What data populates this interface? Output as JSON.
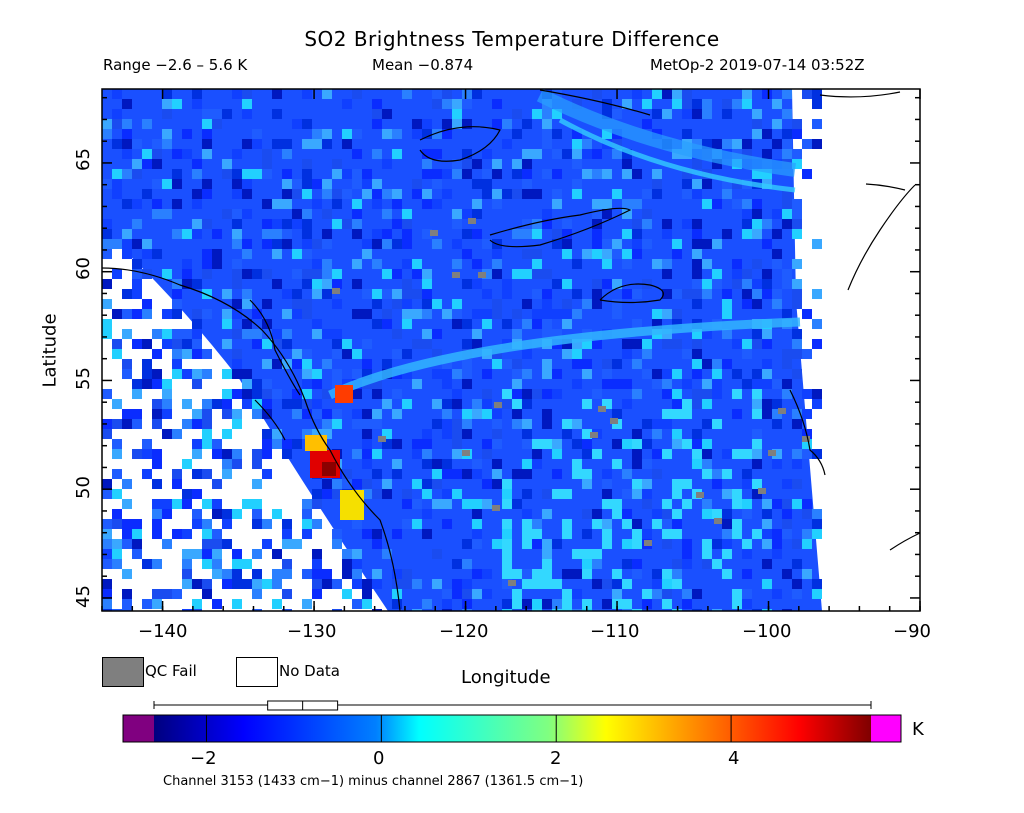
{
  "title": "SO2 Brightness Temperature Difference",
  "range_text": "Range −2.6 – 5.6 K",
  "mean_text": "Mean −0.874",
  "satellite_text": "MetOp-2 2019-07-14 03:52Z",
  "map": {
    "xlabel": "Longitude",
    "ylabel": "Latitude",
    "lon_range": [
      -144,
      -90
    ],
    "lat_range": [
      44.4,
      68.4
    ],
    "x_ticks": [
      "−140",
      "−130",
      "−120",
      "−110",
      "−100",
      "−90"
    ],
    "y_ticks": [
      "45",
      "50",
      "55",
      "60",
      "65"
    ]
  },
  "legend": {
    "qc_fail_label": "QC Fail",
    "no_data_label": "No Data",
    "qc_fail_color": "#7f7f7f",
    "no_data_color": "#ffffff"
  },
  "colorbar": {
    "unit": "K",
    "ticks": [
      "−2",
      "0",
      "2",
      "4"
    ],
    "range": [
      -2.6,
      5.6
    ],
    "under_color": "#800080",
    "over_color": "#ff00ff",
    "box_q1": -1.3,
    "box_median": -0.9,
    "box_q3": -0.5
  },
  "footnote": "Channel 3153 (1433 cm−1) minus channel 2867 (1361.5 cm−1)"
}
